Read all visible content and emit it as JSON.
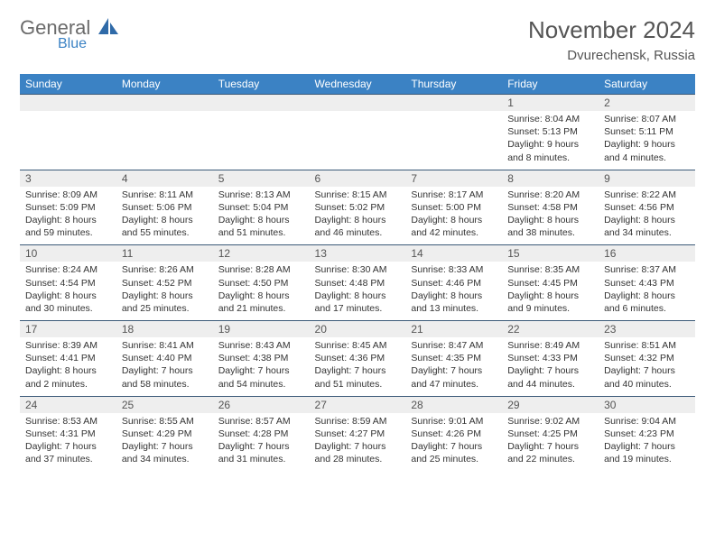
{
  "brand": {
    "main": "General",
    "sub": "Blue"
  },
  "title": "November 2024",
  "location": "Dvurechensk, Russia",
  "colors": {
    "header_bg": "#3b82c4",
    "header_text": "#ffffff",
    "daynum_bg": "#eeeeee",
    "separator": "#3b5a78",
    "brand_grey": "#6b6b6b",
    "brand_blue": "#3b82c4"
  },
  "day_headers": [
    "Sunday",
    "Monday",
    "Tuesday",
    "Wednesday",
    "Thursday",
    "Friday",
    "Saturday"
  ],
  "weeks": [
    [
      null,
      null,
      null,
      null,
      null,
      {
        "n": "1",
        "sr": "Sunrise: 8:04 AM",
        "ss": "Sunset: 5:13 PM",
        "d1": "Daylight: 9 hours",
        "d2": "and 8 minutes."
      },
      {
        "n": "2",
        "sr": "Sunrise: 8:07 AM",
        "ss": "Sunset: 5:11 PM",
        "d1": "Daylight: 9 hours",
        "d2": "and 4 minutes."
      }
    ],
    [
      {
        "n": "3",
        "sr": "Sunrise: 8:09 AM",
        "ss": "Sunset: 5:09 PM",
        "d1": "Daylight: 8 hours",
        "d2": "and 59 minutes."
      },
      {
        "n": "4",
        "sr": "Sunrise: 8:11 AM",
        "ss": "Sunset: 5:06 PM",
        "d1": "Daylight: 8 hours",
        "d2": "and 55 minutes."
      },
      {
        "n": "5",
        "sr": "Sunrise: 8:13 AM",
        "ss": "Sunset: 5:04 PM",
        "d1": "Daylight: 8 hours",
        "d2": "and 51 minutes."
      },
      {
        "n": "6",
        "sr": "Sunrise: 8:15 AM",
        "ss": "Sunset: 5:02 PM",
        "d1": "Daylight: 8 hours",
        "d2": "and 46 minutes."
      },
      {
        "n": "7",
        "sr": "Sunrise: 8:17 AM",
        "ss": "Sunset: 5:00 PM",
        "d1": "Daylight: 8 hours",
        "d2": "and 42 minutes."
      },
      {
        "n": "8",
        "sr": "Sunrise: 8:20 AM",
        "ss": "Sunset: 4:58 PM",
        "d1": "Daylight: 8 hours",
        "d2": "and 38 minutes."
      },
      {
        "n": "9",
        "sr": "Sunrise: 8:22 AM",
        "ss": "Sunset: 4:56 PM",
        "d1": "Daylight: 8 hours",
        "d2": "and 34 minutes."
      }
    ],
    [
      {
        "n": "10",
        "sr": "Sunrise: 8:24 AM",
        "ss": "Sunset: 4:54 PM",
        "d1": "Daylight: 8 hours",
        "d2": "and 30 minutes."
      },
      {
        "n": "11",
        "sr": "Sunrise: 8:26 AM",
        "ss": "Sunset: 4:52 PM",
        "d1": "Daylight: 8 hours",
        "d2": "and 25 minutes."
      },
      {
        "n": "12",
        "sr": "Sunrise: 8:28 AM",
        "ss": "Sunset: 4:50 PM",
        "d1": "Daylight: 8 hours",
        "d2": "and 21 minutes."
      },
      {
        "n": "13",
        "sr": "Sunrise: 8:30 AM",
        "ss": "Sunset: 4:48 PM",
        "d1": "Daylight: 8 hours",
        "d2": "and 17 minutes."
      },
      {
        "n": "14",
        "sr": "Sunrise: 8:33 AM",
        "ss": "Sunset: 4:46 PM",
        "d1": "Daylight: 8 hours",
        "d2": "and 13 minutes."
      },
      {
        "n": "15",
        "sr": "Sunrise: 8:35 AM",
        "ss": "Sunset: 4:45 PM",
        "d1": "Daylight: 8 hours",
        "d2": "and 9 minutes."
      },
      {
        "n": "16",
        "sr": "Sunrise: 8:37 AM",
        "ss": "Sunset: 4:43 PM",
        "d1": "Daylight: 8 hours",
        "d2": "and 6 minutes."
      }
    ],
    [
      {
        "n": "17",
        "sr": "Sunrise: 8:39 AM",
        "ss": "Sunset: 4:41 PM",
        "d1": "Daylight: 8 hours",
        "d2": "and 2 minutes."
      },
      {
        "n": "18",
        "sr": "Sunrise: 8:41 AM",
        "ss": "Sunset: 4:40 PM",
        "d1": "Daylight: 7 hours",
        "d2": "and 58 minutes."
      },
      {
        "n": "19",
        "sr": "Sunrise: 8:43 AM",
        "ss": "Sunset: 4:38 PM",
        "d1": "Daylight: 7 hours",
        "d2": "and 54 minutes."
      },
      {
        "n": "20",
        "sr": "Sunrise: 8:45 AM",
        "ss": "Sunset: 4:36 PM",
        "d1": "Daylight: 7 hours",
        "d2": "and 51 minutes."
      },
      {
        "n": "21",
        "sr": "Sunrise: 8:47 AM",
        "ss": "Sunset: 4:35 PM",
        "d1": "Daylight: 7 hours",
        "d2": "and 47 minutes."
      },
      {
        "n": "22",
        "sr": "Sunrise: 8:49 AM",
        "ss": "Sunset: 4:33 PM",
        "d1": "Daylight: 7 hours",
        "d2": "and 44 minutes."
      },
      {
        "n": "23",
        "sr": "Sunrise: 8:51 AM",
        "ss": "Sunset: 4:32 PM",
        "d1": "Daylight: 7 hours",
        "d2": "and 40 minutes."
      }
    ],
    [
      {
        "n": "24",
        "sr": "Sunrise: 8:53 AM",
        "ss": "Sunset: 4:31 PM",
        "d1": "Daylight: 7 hours",
        "d2": "and 37 minutes."
      },
      {
        "n": "25",
        "sr": "Sunrise: 8:55 AM",
        "ss": "Sunset: 4:29 PM",
        "d1": "Daylight: 7 hours",
        "d2": "and 34 minutes."
      },
      {
        "n": "26",
        "sr": "Sunrise: 8:57 AM",
        "ss": "Sunset: 4:28 PM",
        "d1": "Daylight: 7 hours",
        "d2": "and 31 minutes."
      },
      {
        "n": "27",
        "sr": "Sunrise: 8:59 AM",
        "ss": "Sunset: 4:27 PM",
        "d1": "Daylight: 7 hours",
        "d2": "and 28 minutes."
      },
      {
        "n": "28",
        "sr": "Sunrise: 9:01 AM",
        "ss": "Sunset: 4:26 PM",
        "d1": "Daylight: 7 hours",
        "d2": "and 25 minutes."
      },
      {
        "n": "29",
        "sr": "Sunrise: 9:02 AM",
        "ss": "Sunset: 4:25 PM",
        "d1": "Daylight: 7 hours",
        "d2": "and 22 minutes."
      },
      {
        "n": "30",
        "sr": "Sunrise: 9:04 AM",
        "ss": "Sunset: 4:23 PM",
        "d1": "Daylight: 7 hours",
        "d2": "and 19 minutes."
      }
    ]
  ]
}
